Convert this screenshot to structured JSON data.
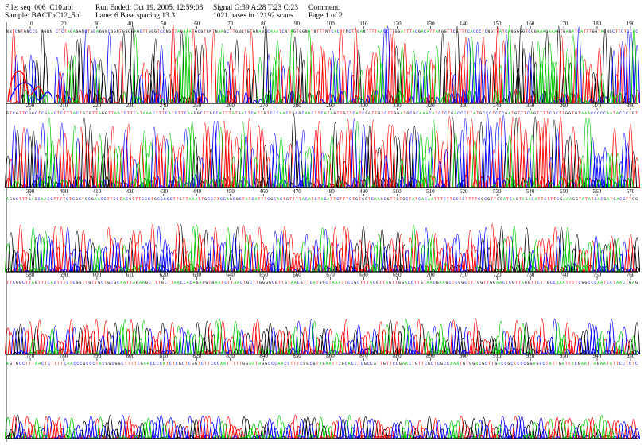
{
  "header": {
    "file": "File: seq_006_C10.abl",
    "sample": "Sample: BACTuC12_5ul",
    "run_ended": "Run Ended: Oct 19, 2005, 12:59:03",
    "lane": "Lane: 6   Base spacing 13.31",
    "signal": "Signal G:39 A:28 T:23 C:23",
    "bases": "1021 bases in 12192 scans",
    "comment": "Comment:",
    "page": "Page 1 of 2"
  },
  "colors": {
    "A": "#00c800",
    "C": "#0000ff",
    "G": "#000000",
    "T": "#ff0000"
  },
  "chart_data": {
    "type": "line",
    "panels": [
      {
        "ticks": [
          10,
          20,
          30,
          40,
          50,
          60,
          70,
          80,
          90,
          100,
          110,
          120,
          130,
          140,
          150,
          160,
          170,
          180,
          190
        ],
        "sequence": "NNTCNTGNCCG GGNN CTCTAGAGGNCTGCAGGNCGGNTGNGGAGCTTGGGTCCNGTTAGAAATGCGTNNTNAAGCTTGNNTGTGNANGCAAATCNTAGTGGNATNTTTNTCACTTNCTTGANTTTTAACCTTGGATTTACGACATTANGGTTCGTTTCACCCTCNGTTATCANGGGGTCGGAAAGAAAGTGAGATCATTTGGTAGNGCTTCTCCAC"
      },
      {
        "ticks": [
          200,
          210,
          220,
          230,
          240,
          250,
          260,
          270,
          280,
          290,
          300,
          310,
          320,
          330,
          340,
          350,
          360,
          370,
          380
        ],
        "sequence": "GTCGTTCGGCTCGAACTCTTTACTGTGTTAGGTTAATCTTCATAAACTTTCATCTTCAAGGCTTGCCATTTATGACTCATTGTCCCAACTGCGCAACTTCATAGTTGTTCATCGGTTGTCTTGGATGCGCAAACATCTCTGACCCTTATGCCCTCTCGATGTTTCAGTTTTCGCTTGGTGTAAACCCCCAATACCCTGT"
      },
      {
        "ticks": [
          390,
          400,
          410,
          420,
          430,
          440,
          450,
          460,
          470,
          480,
          490,
          500,
          510,
          520,
          530,
          540,
          550,
          560,
          570
        ],
        "sequence": "AGGCTTTGAGCAACCTTTTCTCGCTGCGAACCTTCCTACGTTTCCCTGCCCCCTTGTTAAATTGCCTTCCAGCGCTATCATTTCGCACTGTTTTACATCTACATTCTTTCTGTGGTCAAGCGTTGTGCTATCACAATTTCTTCCTCTTTTCGCGTTGGATCAGTAGACATTCTTTCGAAAGGTATATCACGATGACCTTGG"
      },
      {
        "ticks": [
          580,
          590,
          600,
          610,
          620,
          630,
          640,
          650,
          660,
          670,
          680,
          690,
          700,
          710,
          720,
          730,
          740,
          750,
          760
        ],
        "sequence": "TTCGGCTTAGTTTCACTTTCTCGGTTGTTGCTGCGCAATTAGAAGCTTTGCTTAACCACAGAGGTGAATCTTAACTGCTTGGGGCGTTGTAACGTTCATGGCTAAATTCCGCTTTACGTTAGTTGGACCTTGTAACGAAGCTCGGCTTTGGTTGGAACTCGTTAGGTTCTTGCCAAATTTTCGGCCCAATCCTAACTGAG"
      },
      {
        "ticks": [
          770,
          780,
          790,
          800,
          810,
          820,
          830,
          840,
          850,
          860,
          870,
          880,
          890,
          900,
          910,
          920,
          930,
          940,
          950
        ],
        "sequence": "AGTGCCTTTAACTCTTTTCAACCCGCCCTACGGCGGCTTTTCGAACCCCATCTCGCTCGGTCTTCCCAATTTTTGGAATAGGCCCAACCTTTCGGCGTAGAATTCGCACCTCGCCGTTGTTCCGAACTGTTCGCTCGCCAAATGTGGACGCTTGACCGCTCCCGGAGCCTATTGATTACGAATTAGAATATTCCTCTC"
      }
    ]
  }
}
